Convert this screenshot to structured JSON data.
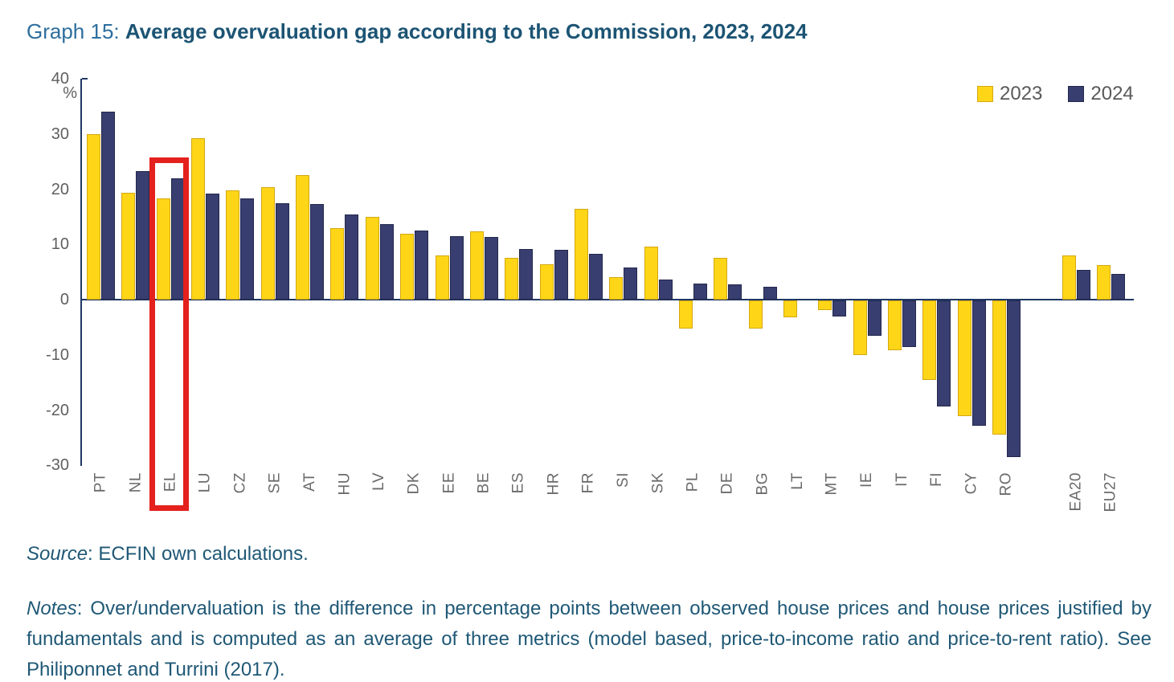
{
  "title": {
    "prefix": "Graph 15:",
    "main": "Average overvaluation gap according to the Commission, 2023, 2024"
  },
  "chart_data": {
    "type": "bar",
    "title": "Average overvaluation gap according to the Commission, 2023, 2024",
    "ylabel": "%",
    "ylim": [
      -30,
      40
    ],
    "yticks": [
      40,
      30,
      20,
      10,
      0,
      -10,
      -20,
      -30
    ],
    "grid": false,
    "legend_position": "top-right",
    "categories": [
      "PT",
      "NL",
      "EL",
      "LU",
      "CZ",
      "SE",
      "AT",
      "HU",
      "LV",
      "DK",
      "EE",
      "BE",
      "ES",
      "HR",
      "FR",
      "SI",
      "SK",
      "PL",
      "DE",
      "BG",
      "LT",
      "MT",
      "IE",
      "IT",
      "FI",
      "CY",
      "RO",
      "EA20",
      "EU27"
    ],
    "aggregate_categories": [
      "EA20",
      "EU27"
    ],
    "highlight": {
      "category": "EL",
      "color": "#E4211C"
    },
    "series": [
      {
        "name": "2023",
        "color": "#FFD617",
        "border": "#D3A712",
        "values": [
          30,
          19.3,
          18.3,
          29.2,
          19.8,
          20.3,
          22.6,
          13,
          15,
          12,
          8,
          12.4,
          7.6,
          6.4,
          16.4,
          4.1,
          9.6,
          -5.1,
          7.6,
          -5.1,
          -3.1,
          -1.7,
          -9.9,
          -9,
          -14.4,
          -21,
          -24.3,
          8,
          6.3
        ]
      },
      {
        "name": "2024",
        "color": "#383E6F",
        "border": "#23284D",
        "values": [
          34,
          23.3,
          22,
          19.2,
          18.3,
          17.4,
          17.3,
          15.4,
          13.7,
          12.5,
          11.5,
          11.3,
          9.1,
          9,
          8.3,
          5.8,
          3.6,
          2.9,
          2.8,
          2.4,
          0,
          -2.9,
          -6.4,
          -8.4,
          -19.2,
          -22.7,
          -28.4,
          5.4,
          4.7
        ]
      }
    ]
  },
  "source": {
    "label": "Source",
    "text": ": ECFIN own calculations."
  },
  "notes": {
    "label": "Notes",
    "text": ": Over/undervaluation is the difference in percentage points between observed house prices and house prices justified by fundamentals and is computed as an average of three metrics (model based, price-to-income ratio and price-to-rent ratio). See Philiponnet and Turrini (2017)."
  }
}
